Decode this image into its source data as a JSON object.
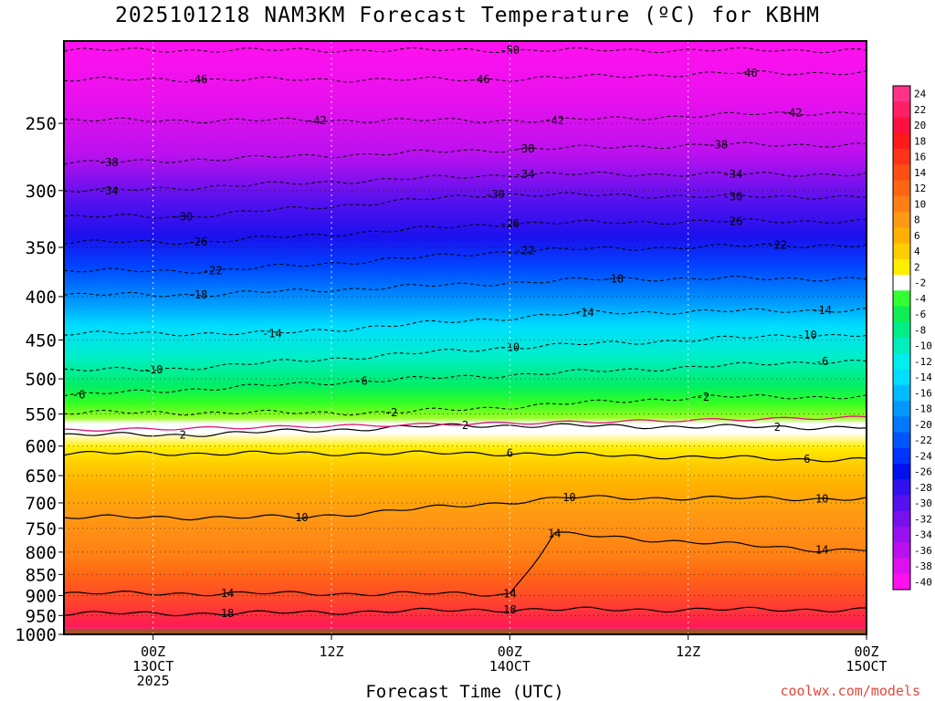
{
  "chart_data": {
    "type": "heatmap",
    "title": "2025101218 NAM3KM Forecast Temperature (ºC) for KBHM",
    "xlabel": "Forecast Time (UTC)",
    "ylabel": "",
    "x_range_hours": [
      -6,
      48
    ],
    "x_ticks": [
      {
        "hour": 0,
        "lines": [
          "00Z",
          "13OCT",
          "2025"
        ]
      },
      {
        "hour": 12,
        "lines": [
          "12Z"
        ]
      },
      {
        "hour": 24,
        "lines": [
          "00Z",
          "14OCT"
        ]
      },
      {
        "hour": 36,
        "lines": [
          "12Z"
        ]
      },
      {
        "hour": 48,
        "lines": [
          "00Z",
          "15OCT"
        ]
      }
    ],
    "y_axis": "pressure (hPa), log scale",
    "y_range": [
      1000,
      200
    ],
    "y_ticks": [
      250,
      300,
      350,
      400,
      450,
      500,
      550,
      600,
      650,
      700,
      750,
      800,
      850,
      900,
      950,
      1000
    ],
    "color_scale": {
      "levels": [
        24,
        22,
        20,
        18,
        16,
        14,
        12,
        10,
        8,
        6,
        4,
        2,
        -2,
        -4,
        -6,
        -8,
        -10,
        -12,
        -14,
        -16,
        -18,
        -20,
        -22,
        -24,
        -26,
        -28,
        -30,
        -32,
        -34,
        -36,
        -38,
        -40
      ],
      "colors": [
        "#ff3388",
        "#ff1f66",
        "#ff1040",
        "#ff1a1a",
        "#ff3318",
        "#ff4f14",
        "#ff6614",
        "#ff7f14",
        "#ff9914",
        "#ffb000",
        "#ffcc00",
        "#ffee00",
        "#ffffff",
        "#33ff33",
        "#11ee55",
        "#00ee88",
        "#00eebb",
        "#00eeee",
        "#00ddff",
        "#00bbff",
        "#0099ff",
        "#0077ff",
        "#0055ff",
        "#0033ff",
        "#0011ee",
        "#3311ee",
        "#5511ee",
        "#7711ee",
        "#9911ee",
        "#bb11ee",
        "#dd11ee",
        "#ff11ee"
      ]
    },
    "contour_labels": [
      {
        "value": "-50",
        "hour": 24,
        "p": 205
      },
      {
        "value": "-46",
        "hour": 3,
        "p": 222
      },
      {
        "value": "-46",
        "hour": 22,
        "p": 222
      },
      {
        "value": "-46",
        "hour": 40,
        "p": 218
      },
      {
        "value": "-42",
        "hour": 11,
        "p": 248
      },
      {
        "value": "-42",
        "hour": 27,
        "p": 248
      },
      {
        "value": "-42",
        "hour": 43,
        "p": 243
      },
      {
        "value": "-38",
        "hour": -3,
        "p": 278
      },
      {
        "value": "-38",
        "hour": 25,
        "p": 268
      },
      {
        "value": "-38",
        "hour": 38,
        "p": 265
      },
      {
        "value": "-34",
        "hour": -3,
        "p": 300
      },
      {
        "value": "-34",
        "hour": 25,
        "p": 287
      },
      {
        "value": "-34",
        "hour": 39,
        "p": 287
      },
      {
        "value": "-30",
        "hour": 2,
        "p": 322
      },
      {
        "value": "-30",
        "hour": 23,
        "p": 303
      },
      {
        "value": "-30",
        "hour": 39,
        "p": 305
      },
      {
        "value": "-26",
        "hour": 3,
        "p": 345
      },
      {
        "value": "-26",
        "hour": 24,
        "p": 328
      },
      {
        "value": "-26",
        "hour": 39,
        "p": 326
      },
      {
        "value": "-22",
        "hour": 4,
        "p": 373
      },
      {
        "value": "-22",
        "hour": 25,
        "p": 353
      },
      {
        "value": "-22",
        "hour": 42,
        "p": 348
      },
      {
        "value": "-18",
        "hour": 3,
        "p": 398
      },
      {
        "value": "-18",
        "hour": 31,
        "p": 381
      },
      {
        "value": "-14",
        "hour": 8,
        "p": 442
      },
      {
        "value": "-14",
        "hour": 29,
        "p": 418
      },
      {
        "value": "-14",
        "hour": 45,
        "p": 415
      },
      {
        "value": "-10",
        "hour": 0,
        "p": 488
      },
      {
        "value": "-10",
        "hour": 24,
        "p": 459
      },
      {
        "value": "-10",
        "hour": 44,
        "p": 444
      },
      {
        "value": "-6",
        "hour": -5,
        "p": 522
      },
      {
        "value": "-6",
        "hour": 14,
        "p": 503
      },
      {
        "value": "-6",
        "hour": 45,
        "p": 477
      },
      {
        "value": "-2",
        "hour": 16,
        "p": 548
      },
      {
        "value": "-2",
        "hour": 37,
        "p": 525
      },
      {
        "value": "2",
        "hour": 2,
        "p": 582
      },
      {
        "value": "2",
        "hour": 21,
        "p": 567
      },
      {
        "value": "2",
        "hour": 42,
        "p": 570
      },
      {
        "value": "6",
        "hour": 24,
        "p": 612
      },
      {
        "value": "6",
        "hour": 44,
        "p": 622
      },
      {
        "value": "10",
        "hour": 10,
        "p": 728
      },
      {
        "value": "10",
        "hour": 28,
        "p": 690
      },
      {
        "value": "10",
        "hour": 45,
        "p": 692
      },
      {
        "value": "14",
        "hour": 5,
        "p": 895
      },
      {
        "value": "14",
        "hour": 24,
        "p": 896
      },
      {
        "value": "14",
        "hour": 27,
        "p": 761
      },
      {
        "value": "14",
        "hour": 45,
        "p": 795
      },
      {
        "value": "18",
        "hour": 5,
        "p": 945
      },
      {
        "value": "18",
        "hour": 24,
        "p": 935
      }
    ]
  },
  "credit": "coolwx.com/models"
}
